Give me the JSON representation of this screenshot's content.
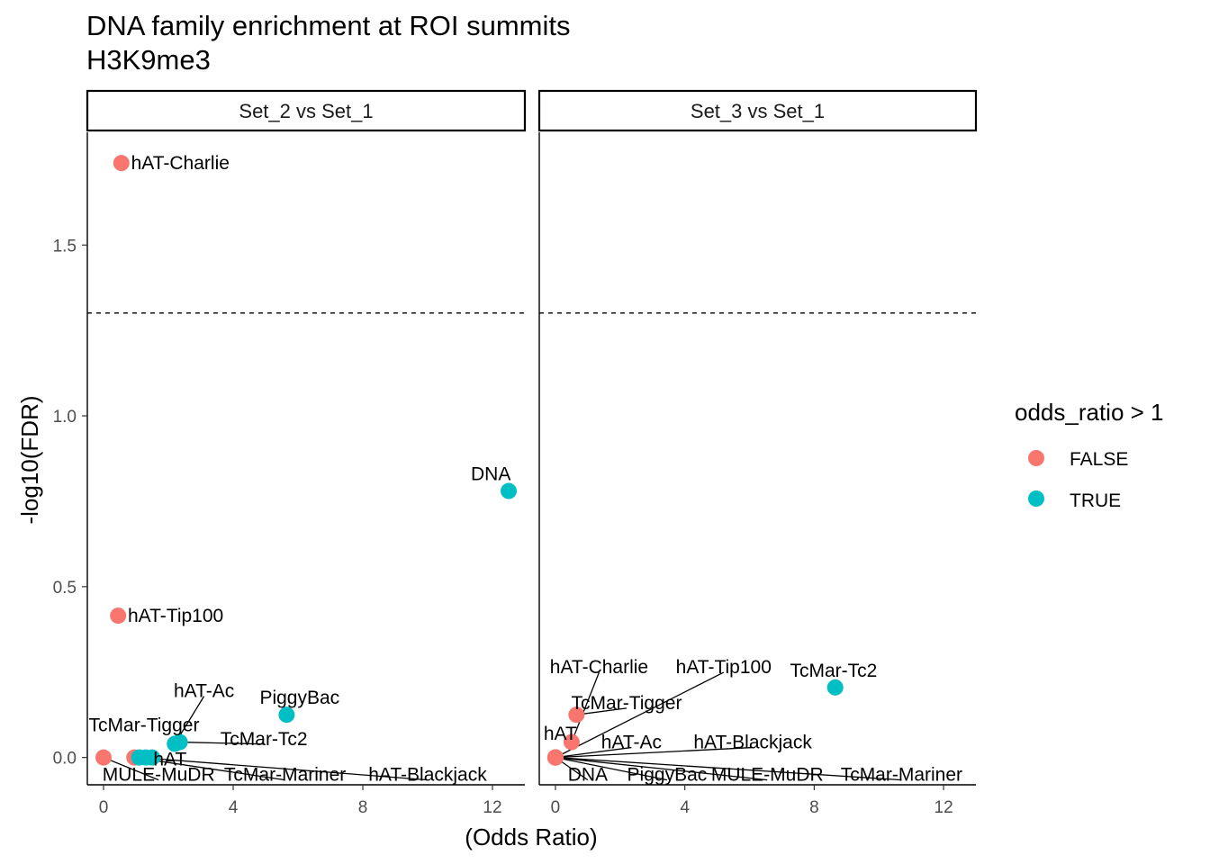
{
  "title": "DNA family enrichment at ROI summits",
  "subtitle": "H3K9me3",
  "chart_data": {
    "type": "scatter",
    "xlabel": "(Odds Ratio)",
    "ylabel": "-log10(FDR)",
    "xlim": [
      -0.5,
      13.0
    ],
    "ylim": [
      -0.08,
      1.83
    ],
    "x_ticks": [
      0,
      4,
      8,
      12
    ],
    "y_ticks": [
      0.0,
      0.5,
      1.0,
      1.5
    ],
    "y_tick_labels": [
      "0.0",
      "0.5",
      "1.0",
      "1.5"
    ],
    "reference_line": {
      "y": 1.301,
      "style": "dashed",
      "meaning": "FDR = 0.05"
    },
    "legend": {
      "title": "odds_ratio > 1",
      "entries": [
        {
          "label": "FALSE",
          "color": "#F8766D"
        },
        {
          "label": "TRUE",
          "color": "#00BFC4"
        }
      ]
    },
    "facets": [
      {
        "name": "Set_2 vs Set_1",
        "points": [
          {
            "label": "hAT-Charlie",
            "x": 0.55,
            "y": 1.74,
            "group": "FALSE",
            "lx": 0.85,
            "ly": 1.74,
            "anchor": "start"
          },
          {
            "label": "hAT-Tip100",
            "x": 0.45,
            "y": 0.415,
            "group": "FALSE",
            "lx": 0.75,
            "ly": 0.415,
            "anchor": "start"
          },
          {
            "label": "DNA",
            "x": 12.5,
            "y": 0.78,
            "group": "TRUE",
            "lx": 11.95,
            "ly": 0.83,
            "anchor": "middle"
          },
          {
            "label": "PiggyBac",
            "x": 5.65,
            "y": 0.125,
            "group": "TRUE",
            "lx": 6.05,
            "ly": 0.175,
            "anchor": "middle"
          },
          {
            "label": "TcMar-Tc2",
            "x": 2.35,
            "y": 0.045,
            "group": "TRUE",
            "lx": 4.95,
            "ly": 0.055,
            "anchor": "middle"
          },
          {
            "label": "hAT-Ac",
            "x": 2.2,
            "y": 0.04,
            "group": "TRUE",
            "lx": 3.1,
            "ly": 0.195,
            "anchor": "middle"
          },
          {
            "label": "TcMar-Tigger",
            "x": 1.3,
            "y": 0.0,
            "group": "TRUE",
            "lx": 1.25,
            "ly": 0.095,
            "anchor": "middle"
          },
          {
            "label": "hAT",
            "x": 1.5,
            "y": 0.0,
            "group": "TRUE",
            "lx": 2.05,
            "ly": -0.005,
            "anchor": "middle"
          },
          {
            "label": "MULE-MuDR",
            "x": 0.0,
            "y": 0.0,
            "group": "FALSE",
            "lx": 1.7,
            "ly": -0.05,
            "anchor": "middle"
          },
          {
            "label": "TcMar-Mariner",
            "x": 0.95,
            "y": 0.0,
            "group": "FALSE",
            "lx": 5.6,
            "ly": -0.05,
            "anchor": "middle"
          },
          {
            "label": "hAT-Blackjack",
            "x": 1.1,
            "y": 0.0,
            "group": "TRUE",
            "lx": 10.0,
            "ly": -0.05,
            "anchor": "middle"
          }
        ]
      },
      {
        "name": "Set_3 vs Set_1",
        "points": [
          {
            "label": "TcMar-Tc2",
            "x": 8.65,
            "y": 0.205,
            "group": "TRUE",
            "lx": 8.6,
            "ly": 0.255,
            "anchor": "middle"
          },
          {
            "label": "TcMar-Tigger",
            "x": 0.65,
            "y": 0.125,
            "group": "FALSE",
            "lx": 2.2,
            "ly": 0.16,
            "anchor": "middle"
          },
          {
            "label": "hAT-Charlie",
            "x": 0.5,
            "y": 0.045,
            "group": "FALSE",
            "lx": 1.35,
            "ly": 0.265,
            "anchor": "middle"
          },
          {
            "label": "hAT-Tip100",
            "x": 0.0,
            "y": 0.0,
            "group": "FALSE",
            "lx": 5.2,
            "ly": 0.265,
            "anchor": "middle"
          },
          {
            "label": "hAT",
            "x": 0.0,
            "y": 0.0,
            "group": "FALSE",
            "lx": 0.15,
            "ly": 0.07,
            "anchor": "middle"
          },
          {
            "label": "hAT-Ac",
            "x": 0.0,
            "y": 0.0,
            "group": "FALSE",
            "lx": 2.35,
            "ly": 0.045,
            "anchor": "middle"
          },
          {
            "label": "hAT-Blackjack",
            "x": 0.0,
            "y": 0.0,
            "group": "FALSE",
            "lx": 6.1,
            "ly": 0.045,
            "anchor": "middle"
          },
          {
            "label": "DNA",
            "x": 0.0,
            "y": 0.0,
            "group": "FALSE",
            "lx": 1.0,
            "ly": -0.05,
            "anchor": "middle"
          },
          {
            "label": "PiggyBac",
            "x": 0.0,
            "y": 0.0,
            "group": "FALSE",
            "lx": 3.45,
            "ly": -0.05,
            "anchor": "middle"
          },
          {
            "label": "MULE-MuDR",
            "x": 0.0,
            "y": 0.0,
            "group": "FALSE",
            "lx": 6.55,
            "ly": -0.05,
            "anchor": "middle"
          },
          {
            "label": "TcMar-Mariner",
            "x": 0.0,
            "y": 0.0,
            "group": "FALSE",
            "lx": 10.7,
            "ly": -0.05,
            "anchor": "middle"
          }
        ]
      }
    ]
  }
}
